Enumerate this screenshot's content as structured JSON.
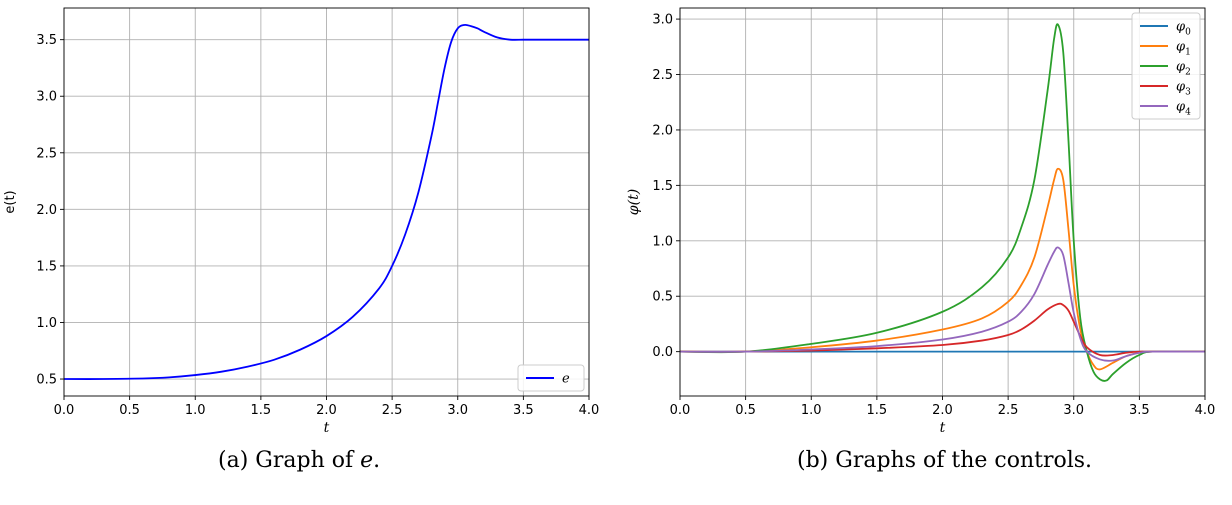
{
  "captions": {
    "a_label": "(a)",
    "a_text": "Graph of ",
    "a_var": "e",
    "a_end": ".",
    "b_label": "(b)",
    "b_text": "Graphs of the controls."
  },
  "chart_data": [
    {
      "type": "line",
      "xlabel": "t",
      "ylabel": "e(t)",
      "xlim": [
        0.0,
        4.0
      ],
      "ylim": [
        0.35,
        3.78
      ],
      "xticks": [
        "0.0",
        "0.5",
        "1.0",
        "1.5",
        "2.0",
        "2.5",
        "3.0",
        "3.5",
        "4.0"
      ],
      "yticks": [
        "0.5",
        "1.0",
        "1.5",
        "2.0",
        "2.5",
        "3.0",
        "3.5"
      ],
      "grid": true,
      "legend": "bottom-right",
      "series": [
        {
          "name": "e",
          "color": "#0000ff",
          "x": [
            0.0,
            0.3,
            0.6,
            0.8,
            1.0,
            1.2,
            1.4,
            1.6,
            1.8,
            2.0,
            2.2,
            2.4,
            2.5,
            2.6,
            2.7,
            2.8,
            2.85,
            2.9,
            2.95,
            3.0,
            3.05,
            3.1,
            3.15,
            3.2,
            3.3,
            3.4,
            3.5,
            3.6,
            4.0
          ],
          "y": [
            0.5,
            0.5,
            0.505,
            0.515,
            0.535,
            0.565,
            0.61,
            0.67,
            0.76,
            0.88,
            1.05,
            1.3,
            1.5,
            1.78,
            2.15,
            2.65,
            2.95,
            3.25,
            3.48,
            3.6,
            3.63,
            3.62,
            3.6,
            3.57,
            3.52,
            3.5,
            3.5,
            3.5,
            3.5
          ]
        }
      ]
    },
    {
      "type": "line",
      "xlabel": "t",
      "ylabel": "φ(t)",
      "xlim": [
        0.0,
        4.0
      ],
      "ylim": [
        -0.4,
        3.1
      ],
      "xticks": [
        "0.0",
        "0.5",
        "1.0",
        "1.5",
        "2.0",
        "2.5",
        "3.0",
        "3.5",
        "4.0"
      ],
      "yticks": [
        "0.0",
        "0.5",
        "1.0",
        "1.5",
        "2.0",
        "2.5",
        "3.0"
      ],
      "grid": true,
      "legend": "top-right",
      "series": [
        {
          "name": "φ0",
          "base": "φ",
          "sub": "0",
          "color": "#1f77b4",
          "x": [
            0.0,
            4.0
          ],
          "y": [
            0.0,
            0.0
          ]
        },
        {
          "name": "φ1",
          "base": "φ",
          "sub": "1",
          "color": "#ff7f0e",
          "x": [
            0.0,
            0.5,
            1.0,
            1.5,
            2.0,
            2.3,
            2.5,
            2.6,
            2.7,
            2.8,
            2.85,
            2.88,
            2.92,
            2.96,
            3.0,
            3.05,
            3.1,
            3.15,
            3.2,
            3.3,
            3.4,
            3.5,
            3.6,
            4.0
          ],
          "y": [
            0.0,
            0.0,
            0.04,
            0.1,
            0.2,
            0.3,
            0.45,
            0.6,
            0.85,
            1.3,
            1.55,
            1.65,
            1.55,
            1.1,
            0.6,
            0.2,
            0.0,
            -0.12,
            -0.16,
            -0.1,
            -0.04,
            -0.01,
            0.0,
            0.0
          ]
        },
        {
          "name": "φ2",
          "base": "φ",
          "sub": "2",
          "color": "#2ca02c",
          "x": [
            0.0,
            0.5,
            1.0,
            1.5,
            2.0,
            2.3,
            2.5,
            2.6,
            2.7,
            2.8,
            2.85,
            2.88,
            2.92,
            2.96,
            3.0,
            3.05,
            3.1,
            3.15,
            3.2,
            3.25,
            3.3,
            3.4,
            3.5,
            3.6,
            4.0
          ],
          "y": [
            0.0,
            0.0,
            0.07,
            0.17,
            0.36,
            0.58,
            0.85,
            1.12,
            1.55,
            2.35,
            2.82,
            2.95,
            2.7,
            1.9,
            1.0,
            0.3,
            0.0,
            -0.18,
            -0.25,
            -0.26,
            -0.2,
            -0.1,
            -0.03,
            0.0,
            0.0
          ]
        },
        {
          "name": "φ3",
          "base": "φ",
          "sub": "3",
          "color": "#d62728",
          "x": [
            0.0,
            0.5,
            1.0,
            1.5,
            2.0,
            2.3,
            2.5,
            2.6,
            2.7,
            2.8,
            2.88,
            2.92,
            2.96,
            3.0,
            3.05,
            3.1,
            3.2,
            3.3,
            3.4,
            3.5,
            3.6,
            4.0
          ],
          "y": [
            0.0,
            0.0,
            0.01,
            0.03,
            0.06,
            0.1,
            0.15,
            0.2,
            0.28,
            0.38,
            0.43,
            0.42,
            0.37,
            0.27,
            0.14,
            0.04,
            -0.03,
            -0.03,
            -0.01,
            0.0,
            0.0,
            0.0
          ]
        },
        {
          "name": "φ4",
          "base": "φ",
          "sub": "4",
          "color": "#9467bd",
          "x": [
            0.0,
            0.5,
            1.0,
            1.5,
            2.0,
            2.3,
            2.5,
            2.6,
            2.7,
            2.8,
            2.85,
            2.88,
            2.92,
            2.96,
            3.0,
            3.05,
            3.1,
            3.2,
            3.3,
            3.4,
            3.5,
            3.6,
            4.0
          ],
          "y": [
            0.0,
            0.0,
            0.02,
            0.05,
            0.11,
            0.18,
            0.27,
            0.36,
            0.52,
            0.78,
            0.9,
            0.94,
            0.87,
            0.62,
            0.35,
            0.12,
            0.0,
            -0.07,
            -0.08,
            -0.04,
            -0.01,
            0.0,
            0.0
          ]
        }
      ]
    }
  ]
}
